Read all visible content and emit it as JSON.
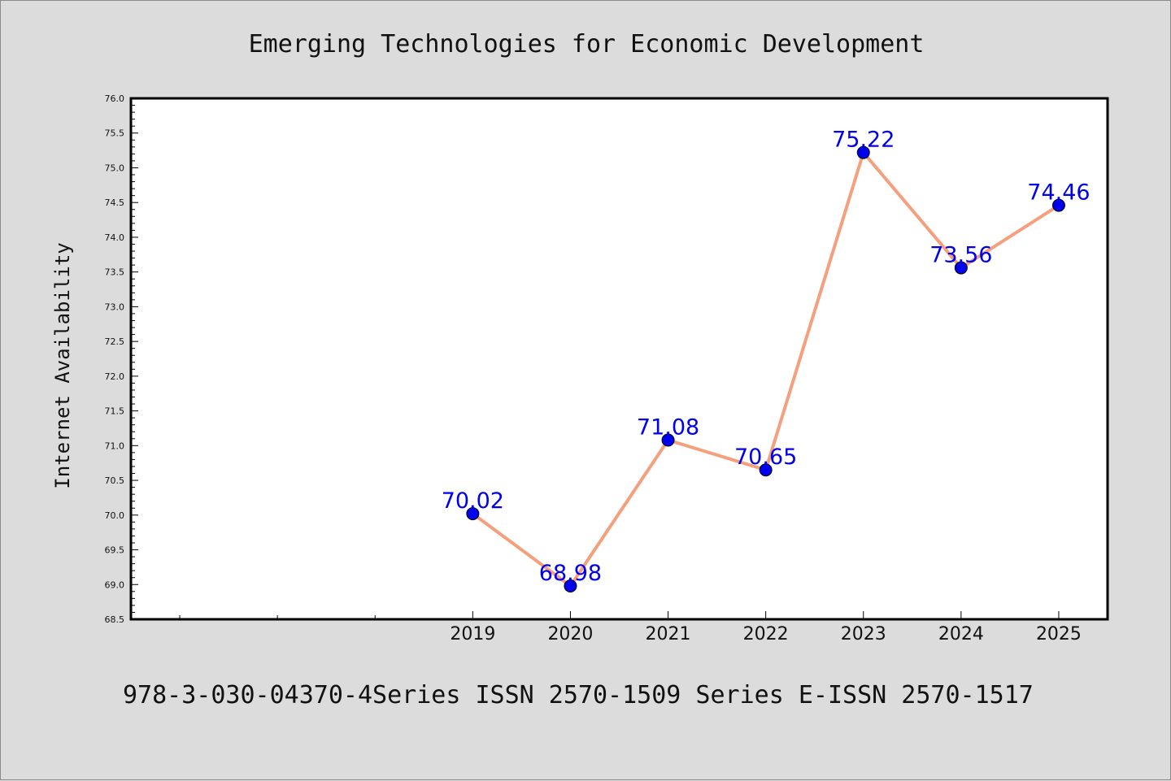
{
  "chart_data": {
    "type": "line",
    "title": "Emerging Technologies for Economic Development",
    "xlabel": "",
    "ylabel": "Internet Availability",
    "x": [
      2019,
      2020,
      2021,
      2022,
      2023,
      2024,
      2025
    ],
    "series": [
      {
        "values": [
          70.02,
          68.98,
          71.08,
          70.65,
          75.22,
          73.56,
          74.46
        ],
        "data_labels": [
          "70.02",
          "68.98",
          "71.08",
          "70.65",
          "75.22",
          "73.56",
          "74.46"
        ]
      }
    ],
    "xlim": [
      2015.5,
      2025.5
    ],
    "xticks_major": [
      2019,
      2020,
      2021,
      2022,
      2023,
      2024,
      2025
    ],
    "xticks_minor": [
      2016,
      2017,
      2018
    ],
    "ylim": [
      68.5,
      76.0
    ],
    "yticks": [
      "68.5",
      "69.0",
      "69.5",
      "70.0",
      "70.5",
      "71.0",
      "71.5",
      "72.0",
      "72.5",
      "73.0",
      "73.5",
      "74.0",
      "74.5",
      "75.0",
      "75.5",
      "76.0"
    ],
    "grid": false,
    "legend": "none",
    "line_color": "#f4a07e",
    "marker_color": "#0000ee",
    "label_color": "#0000ee"
  },
  "footer": "978-3-030-04370-4Series ISSN 2570-1509 Series E-ISSN 2570-1517"
}
